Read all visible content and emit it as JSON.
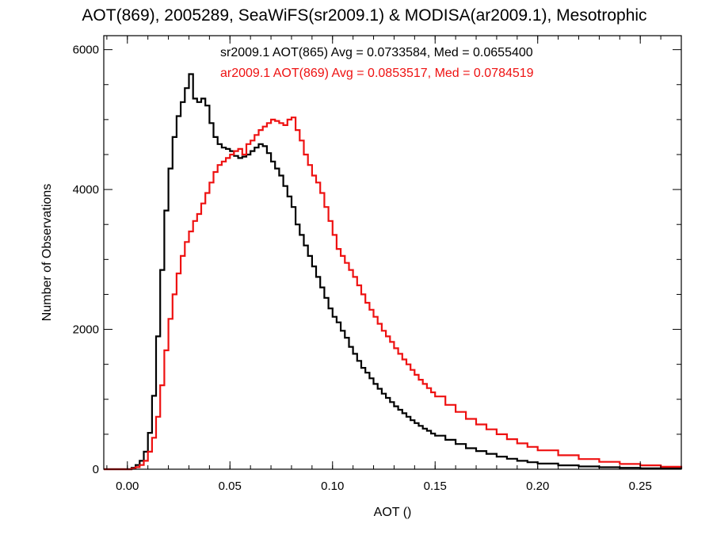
{
  "chart_data": {
    "type": "line",
    "step": true,
    "title": "AOT(869), 2005289, SeaWiFS(sr2009.1) & MODISA(ar2009.1), Mesotrophic",
    "xlabel": "AOT ()",
    "ylabel": "Number of Observations",
    "xlim": [
      -0.0115,
      0.27
    ],
    "ylim": [
      0,
      6200
    ],
    "xticks": [
      {
        "value": 0.0,
        "label": "0.00"
      },
      {
        "value": 0.05,
        "label": "0.05"
      },
      {
        "value": 0.1,
        "label": "0.10"
      },
      {
        "value": 0.15,
        "label": "0.15"
      },
      {
        "value": 0.2,
        "label": "0.20"
      },
      {
        "value": 0.25,
        "label": "0.25"
      }
    ],
    "yticks": [
      {
        "value": 0,
        "label": "0"
      },
      {
        "value": 2000,
        "label": "2000"
      },
      {
        "value": 4000,
        "label": "4000"
      },
      {
        "value": 6000,
        "label": "6000"
      }
    ],
    "grid": false,
    "legend_position": "top-right",
    "series": [
      {
        "name": "sr2009.1 AOT(865) Avg = 0.0733584, Med = 0.0655400",
        "color": "#000000",
        "x": [
          -0.0115,
          0.0,
          0.002,
          0.004,
          0.006,
          0.008,
          0.01,
          0.012,
          0.014,
          0.016,
          0.018,
          0.02,
          0.022,
          0.024,
          0.026,
          0.028,
          0.03,
          0.032,
          0.034,
          0.036,
          0.038,
          0.04,
          0.042,
          0.044,
          0.046,
          0.048,
          0.05,
          0.052,
          0.054,
          0.056,
          0.058,
          0.06,
          0.062,
          0.064,
          0.066,
          0.068,
          0.07,
          0.072,
          0.074,
          0.076,
          0.078,
          0.08,
          0.082,
          0.084,
          0.086,
          0.088,
          0.09,
          0.092,
          0.094,
          0.096,
          0.098,
          0.1,
          0.102,
          0.104,
          0.106,
          0.108,
          0.11,
          0.112,
          0.114,
          0.116,
          0.118,
          0.12,
          0.122,
          0.124,
          0.126,
          0.128,
          0.13,
          0.132,
          0.134,
          0.136,
          0.138,
          0.14,
          0.142,
          0.144,
          0.146,
          0.148,
          0.15,
          0.155,
          0.16,
          0.165,
          0.17,
          0.175,
          0.18,
          0.185,
          0.19,
          0.195,
          0.2,
          0.21,
          0.22,
          0.23,
          0.24,
          0.25,
          0.26,
          0.27
        ],
        "y": [
          0,
          0,
          20,
          60,
          120,
          250,
          520,
          1050,
          1900,
          2850,
          3700,
          4300,
          4750,
          5050,
          5250,
          5450,
          5650,
          5300,
          5250,
          5300,
          5200,
          4950,
          4750,
          4650,
          4600,
          4580,
          4550,
          4480,
          4450,
          4470,
          4500,
          4550,
          4600,
          4650,
          4620,
          4520,
          4400,
          4300,
          4200,
          4050,
          3900,
          3750,
          3500,
          3350,
          3200,
          3050,
          2900,
          2750,
          2600,
          2450,
          2300,
          2180,
          2100,
          1980,
          1880,
          1750,
          1650,
          1550,
          1450,
          1380,
          1300,
          1220,
          1150,
          1080,
          1020,
          960,
          900,
          850,
          800,
          750,
          700,
          660,
          620,
          580,
          550,
          510,
          480,
          420,
          360,
          300,
          260,
          220,
          180,
          150,
          120,
          100,
          80,
          55,
          40,
          28,
          20,
          14,
          10,
          6
        ]
      },
      {
        "name": "ar2009.1 AOT(869) Avg = 0.0853517, Med = 0.0784519",
        "color": "#ee1111",
        "x": [
          -0.0115,
          0.0,
          0.002,
          0.004,
          0.006,
          0.008,
          0.01,
          0.012,
          0.014,
          0.016,
          0.018,
          0.02,
          0.022,
          0.024,
          0.026,
          0.028,
          0.03,
          0.032,
          0.034,
          0.036,
          0.038,
          0.04,
          0.042,
          0.044,
          0.046,
          0.048,
          0.05,
          0.052,
          0.054,
          0.056,
          0.058,
          0.06,
          0.062,
          0.064,
          0.066,
          0.068,
          0.07,
          0.072,
          0.074,
          0.076,
          0.078,
          0.08,
          0.082,
          0.084,
          0.086,
          0.088,
          0.09,
          0.092,
          0.094,
          0.096,
          0.098,
          0.1,
          0.102,
          0.104,
          0.106,
          0.108,
          0.11,
          0.112,
          0.114,
          0.116,
          0.118,
          0.12,
          0.122,
          0.124,
          0.126,
          0.128,
          0.13,
          0.132,
          0.134,
          0.136,
          0.138,
          0.14,
          0.142,
          0.144,
          0.146,
          0.148,
          0.15,
          0.155,
          0.16,
          0.165,
          0.17,
          0.175,
          0.18,
          0.185,
          0.19,
          0.195,
          0.2,
          0.21,
          0.22,
          0.23,
          0.24,
          0.25,
          0.26,
          0.27
        ],
        "y": [
          0,
          0,
          10,
          30,
          60,
          120,
          250,
          450,
          750,
          1200,
          1700,
          2150,
          2500,
          2800,
          3050,
          3250,
          3400,
          3550,
          3650,
          3800,
          3950,
          4100,
          4250,
          4350,
          4400,
          4450,
          4500,
          4550,
          4580,
          4500,
          4650,
          4700,
          4780,
          4850,
          4900,
          4950,
          5000,
          4980,
          4950,
          4920,
          5000,
          5030,
          4850,
          4700,
          4500,
          4350,
          4200,
          4100,
          3950,
          3750,
          3550,
          3350,
          3150,
          3050,
          2950,
          2850,
          2750,
          2630,
          2500,
          2380,
          2280,
          2180,
          2080,
          1980,
          1900,
          1820,
          1730,
          1650,
          1570,
          1500,
          1420,
          1350,
          1280,
          1220,
          1160,
          1100,
          1040,
          920,
          820,
          720,
          640,
          570,
          500,
          430,
          370,
          320,
          270,
          200,
          145,
          105,
          75,
          55,
          35,
          22
        ]
      }
    ]
  }
}
